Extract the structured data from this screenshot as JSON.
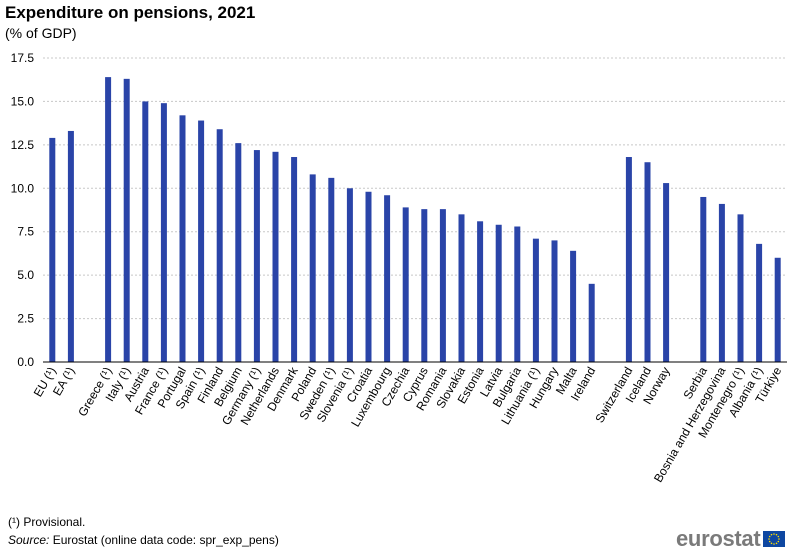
{
  "header": {
    "title": "Expenditure on pensions, 2021",
    "subtitle": "(% of GDP)"
  },
  "footer": {
    "footnote": "(¹) Provisional.",
    "source_label": "Source:",
    "source_text": "Eurostat (online data code: spr_exp_pens)",
    "logo_text": "eurostat"
  },
  "colors": {
    "bar": "#2a44a8",
    "grid": "#c8c8c8",
    "axis": "#000000",
    "flag_blue": "#0e47a1",
    "flag_star": "#ffdd00"
  },
  "chart_data": {
    "type": "bar",
    "title": "Expenditure on pensions, 2021",
    "subtitle": "(% of GDP)",
    "ylim": [
      0,
      17.5
    ],
    "yticks": [
      "0.0",
      "2.5",
      "5.0",
      "7.5",
      "10.0",
      "12.5",
      "15.0",
      "17.5"
    ],
    "grid": true,
    "grid_style": "dotted horizontal",
    "categories": [
      "EU (¹)",
      "EA (¹)",
      "",
      "Greece (¹)",
      "Italy (¹)",
      "Austria",
      "France (¹)",
      "Portugal",
      "Spain (¹)",
      "Finland",
      "Belgium",
      "Germany (¹)",
      "Netherlands",
      "Denmark",
      "Poland",
      "Sweden (¹)",
      "Slovenia (¹)",
      "Croatia",
      "Luxembourg",
      "Czechia",
      "Cyprus",
      "Romania",
      "Slovakia",
      "Estonia",
      "Latvia",
      "Bulgaria",
      "Lithuania (¹)",
      "Hungary",
      "Malta",
      "Ireland",
      "",
      "Switzerland",
      "Iceland",
      "Norway",
      "",
      "Serbia",
      "Bosnia and Herzegovina",
      "Montenegro (¹)",
      "Albania (¹)",
      "Türkiye"
    ],
    "values": [
      12.9,
      13.3,
      null,
      16.4,
      16.3,
      15.0,
      14.9,
      14.2,
      13.9,
      13.4,
      12.6,
      12.2,
      12.1,
      11.8,
      10.8,
      10.6,
      10.0,
      9.8,
      9.6,
      8.9,
      8.8,
      8.8,
      8.5,
      8.1,
      7.9,
      7.8,
      7.1,
      7.0,
      6.4,
      4.5,
      null,
      11.8,
      11.5,
      10.3,
      null,
      9.5,
      9.1,
      8.5,
      6.8,
      6.0
    ]
  }
}
